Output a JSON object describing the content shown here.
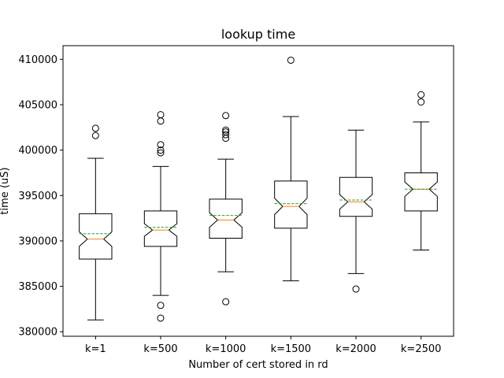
{
  "chart_data": {
    "type": "boxplot",
    "title": "lookup time",
    "xlabel": "Number of cert stored in rd",
    "ylabel": "time (uS)",
    "ylim": [
      379500,
      411500
    ],
    "y_ticks": [
      380000,
      385000,
      390000,
      395000,
      400000,
      405000,
      410000
    ],
    "y_tick_labels": [
      "380000",
      "385000",
      "390000",
      "395000",
      "400000",
      "405000",
      "410000"
    ],
    "notched": true,
    "show_means": true,
    "mean_style": "dashed",
    "grid": false,
    "colors": {
      "box": "#000000",
      "median": "#ff7f0e",
      "mean": "#2ca02c",
      "flier": "#000000"
    },
    "categories": [
      "k=1",
      "k=500",
      "k=1000",
      "k=1500",
      "k=2000",
      "k=2500"
    ],
    "boxes": [
      {
        "label": "k=1",
        "whislo": 381300,
        "q1": 388000,
        "med": 390200,
        "mean": 390800,
        "q3": 393000,
        "whishi": 399100,
        "notchlo": 389400,
        "notchhi": 391000,
        "fliers": [
          402400,
          401600
        ]
      },
      {
        "label": "k=500",
        "whislo": 384000,
        "q1": 389400,
        "med": 391200,
        "mean": 391500,
        "q3": 393300,
        "whishi": 398200,
        "notchlo": 390500,
        "notchhi": 391900,
        "fliers": [
          403900,
          403200,
          400600,
          400000,
          399700,
          382900,
          381500
        ]
      },
      {
        "label": "k=1000",
        "whislo": 386600,
        "q1": 390300,
        "med": 392300,
        "mean": 392800,
        "q3": 394600,
        "whishi": 399000,
        "notchlo": 391500,
        "notchhi": 393100,
        "fliers": [
          403800,
          402200,
          402000,
          401700,
          401300,
          383300
        ]
      },
      {
        "label": "k=1500",
        "whislo": 385600,
        "q1": 391400,
        "med": 393800,
        "mean": 394100,
        "q3": 396600,
        "whishi": 403700,
        "notchlo": 392900,
        "notchhi": 394700,
        "fliers": [
          409900
        ]
      },
      {
        "label": "k=2000",
        "whislo": 386400,
        "q1": 392700,
        "med": 394300,
        "mean": 394500,
        "q3": 397000,
        "whishi": 402200,
        "notchlo": 393500,
        "notchhi": 395100,
        "fliers": [
          384700
        ]
      },
      {
        "label": "k=2500",
        "whislo": 389000,
        "q1": 393300,
        "med": 395700,
        "mean": 395700,
        "q3": 397500,
        "whishi": 403100,
        "notchlo": 394900,
        "notchhi": 396500,
        "fliers": [
          406100,
          405300
        ]
      }
    ]
  }
}
